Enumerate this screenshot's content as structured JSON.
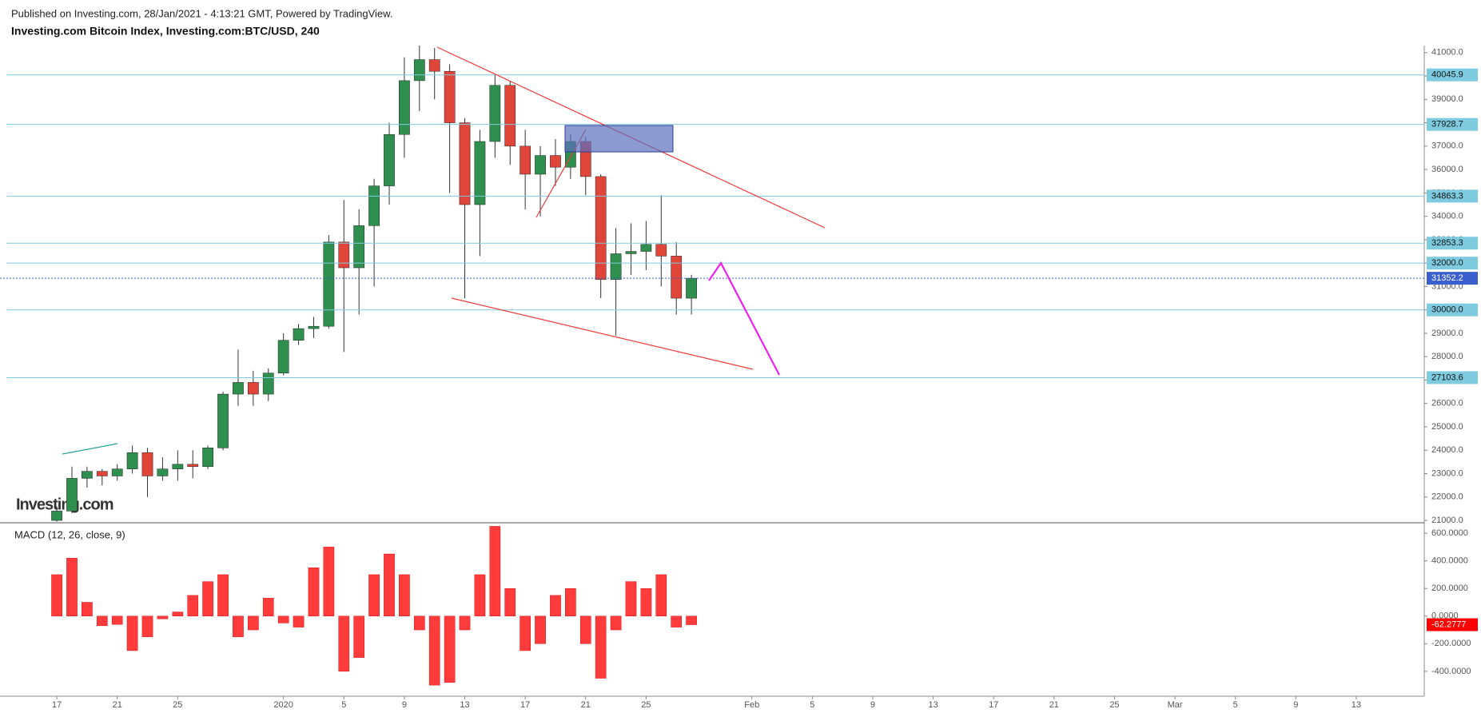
{
  "header": {
    "published": "Published on Investing.com, 28/Jan/2021 - 4:13:21 GMT, Powered by TradingView.",
    "title": "Investing.com Bitcoin Index, Investing.com:BTC/USD, 240",
    "logo": "Investing.com"
  },
  "chart_data": [
    {
      "type": "candlestick",
      "up_color": "#2f8f4e",
      "down_color": "#e0453a",
      "level_color": "#7ecbe0",
      "current_color": "#3a5fcd",
      "x": [
        3,
        4,
        5,
        6,
        7,
        8,
        9,
        10,
        11,
        12,
        13,
        14,
        15,
        16,
        17,
        18,
        19,
        20,
        21,
        22,
        23,
        24,
        25,
        26,
        27,
        28,
        29,
        30,
        31,
        32,
        33,
        34,
        35,
        36,
        37,
        38,
        39,
        40,
        41,
        42,
        43,
        44,
        45
      ],
      "open": [
        21000,
        21400,
        22800,
        23100,
        22900,
        23200,
        23900,
        22900,
        23200,
        23400,
        23300,
        24100,
        26400,
        26900,
        26400,
        27300,
        28700,
        29200,
        29300,
        32900,
        31800,
        33600,
        35300,
        37500,
        39800,
        40700,
        40200,
        38000,
        34500,
        37200,
        39600,
        37000,
        35800,
        36600,
        36100,
        37200,
        35700,
        31300,
        32400,
        32500,
        32800,
        32300,
        30500
      ],
      "high": [
        21600,
        23300,
        23300,
        23200,
        23400,
        24200,
        24100,
        23700,
        24000,
        24000,
        24200,
        26500,
        28300,
        27400,
        27500,
        29000,
        29400,
        29700,
        33200,
        34700,
        34300,
        35600,
        38000,
        40800,
        41300,
        41200,
        40500,
        38200,
        37700,
        40100,
        39800,
        37700,
        37000,
        37300,
        37500,
        37400,
        35800,
        33500,
        33700,
        33800,
        34900,
        32900,
        31500
      ],
      "low": [
        20950,
        21300,
        22400,
        22500,
        22700,
        23000,
        22000,
        22700,
        22700,
        22800,
        23200,
        24000,
        25900,
        25900,
        26100,
        27200,
        28500,
        28800,
        29200,
        28200,
        29800,
        31000,
        34500,
        36500,
        38500,
        39000,
        35000,
        30500,
        32300,
        36500,
        36200,
        34300,
        34000,
        35300,
        35600,
        34900,
        30500,
        28900,
        31500,
        31700,
        31000,
        29800,
        29800
      ],
      "close": [
        21400,
        22800,
        23100,
        22900,
        23200,
        23900,
        22900,
        23200,
        23400,
        23300,
        24100,
        26400,
        26900,
        26400,
        27300,
        28700,
        29200,
        29300,
        32900,
        31800,
        33600,
        35300,
        37500,
        39800,
        40700,
        40200,
        38000,
        34500,
        37200,
        39600,
        37000,
        35800,
        36600,
        36100,
        37200,
        35700,
        31300,
        32400,
        32500,
        32800,
        32300,
        30500,
        31352.2
      ],
      "xlim": [
        -0.76,
        93.5
      ],
      "xticks": [
        {
          "value": 3,
          "label": "17"
        },
        {
          "value": 7,
          "label": "21"
        },
        {
          "value": 11,
          "label": "25"
        },
        {
          "value": 18,
          "label": "2020"
        },
        {
          "value": 22,
          "label": "5"
        },
        {
          "value": 26,
          "label": "9"
        },
        {
          "value": 30,
          "label": "13"
        },
        {
          "value": 34,
          "label": "17"
        },
        {
          "value": 38,
          "label": "21"
        },
        {
          "value": 42,
          "label": "25"
        },
        {
          "value": 49,
          "label": "Feb"
        },
        {
          "value": 53,
          "label": "5"
        },
        {
          "value": 57,
          "label": "9"
        },
        {
          "value": 61,
          "label": "13"
        },
        {
          "value": 65,
          "label": "17"
        },
        {
          "value": 69,
          "label": "21"
        },
        {
          "value": 73,
          "label": "25"
        },
        {
          "value": 77,
          "label": "Mar"
        },
        {
          "value": 81,
          "label": "5"
        },
        {
          "value": 85,
          "label": "9"
        },
        {
          "value": 89,
          "label": "13"
        }
      ],
      "ylim": [
        20900,
        41300
      ],
      "yticks": [
        {
          "value": 21000,
          "label": "21000.0"
        },
        {
          "value": 22000,
          "label": "22000.0"
        },
        {
          "value": 23000,
          "label": "23000.0"
        },
        {
          "value": 24000,
          "label": "24000.0"
        },
        {
          "value": 25000,
          "label": "25000.0"
        },
        {
          "value": 26000,
          "label": "26000.0"
        },
        {
          "value": 27000,
          "label": "27000.0"
        },
        {
          "value": 28000,
          "label": "28000.0"
        },
        {
          "value": 29000,
          "label": "29000.0"
        },
        {
          "value": 30000,
          "label": "30000.0"
        },
        {
          "value": 31000,
          "label": "31000.0"
        },
        {
          "value": 32000,
          "label": "32000.0"
        },
        {
          "value": 33000,
          "label": "33000.0"
        },
        {
          "value": 34000,
          "label": "34000.0"
        },
        {
          "value": 35000,
          "label": "35000.0"
        },
        {
          "value": 36000,
          "label": "36000.0"
        },
        {
          "value": 37000,
          "label": "37000.0"
        },
        {
          "value": 38000,
          "label": "38000.0"
        },
        {
          "value": 39000,
          "label": "39000.0"
        },
        {
          "value": 40000,
          "label": "40000.0"
        },
        {
          "value": 41000,
          "label": "41000.0"
        }
      ],
      "levels": [
        40045.9,
        37928.7,
        34863.3,
        32853.3,
        {
          "value": 32000,
          "label": "32000.0"
        },
        {
          "value": 30000,
          "label": "30000.0"
        },
        27103.6
      ],
      "current": 31352.2
    },
    {
      "type": "histogram",
      "title": "MACD (12, 26, close, 9)",
      "color": "#ff3b3b",
      "x": [
        3,
        4,
        5,
        6,
        7,
        8,
        9,
        10,
        11,
        12,
        13,
        14,
        15,
        16,
        17,
        18,
        19,
        20,
        21,
        22,
        23,
        24,
        25,
        26,
        27,
        28,
        29,
        30,
        31,
        32,
        33,
        34,
        35,
        36,
        37,
        38,
        39,
        40,
        41,
        42,
        43,
        44,
        45
      ],
      "values": [
        300,
        420,
        100,
        -70,
        -60,
        -250,
        -150,
        -20,
        30,
        150,
        250,
        300,
        -150,
        -100,
        130,
        -50,
        -80,
        350,
        500,
        -400,
        -300,
        300,
        450,
        300,
        -100,
        -500,
        -480,
        -100,
        300,
        650,
        200,
        -250,
        -200,
        150,
        200,
        -200,
        -450,
        -100,
        250,
        200,
        300,
        -80,
        -62.2777
      ],
      "ylim": [
        -580,
        670
      ],
      "yticks": [
        {
          "value": 600,
          "label": "600.0000"
        },
        {
          "value": 400,
          "label": "400.0000"
        },
        {
          "value": 200,
          "label": "200.0000"
        },
        {
          "value": 0,
          "label": "0.0000"
        },
        {
          "value": -200,
          "label": "-200.0000"
        },
        {
          "value": -400,
          "label": "-400.0000"
        }
      ],
      "current": {
        "value": -62.2777,
        "label": "-62.2777"
      }
    }
  ]
}
